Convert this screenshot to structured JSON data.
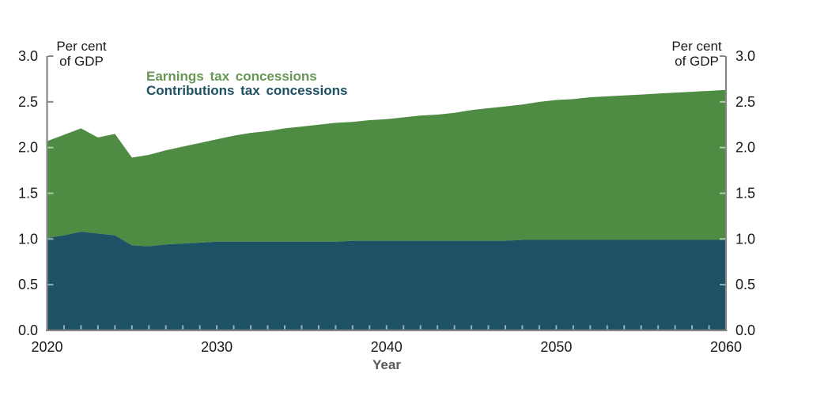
{
  "chart_data": {
    "type": "area",
    "stacked": true,
    "xlabel": "Year",
    "y_axis_unit_label": {
      "line1": "Per cent",
      "line2": "of GDP"
    },
    "xlim": [
      2020,
      2060
    ],
    "ylim": [
      0.0,
      3.0
    ],
    "xticks": [
      "2020",
      "2030",
      "2040",
      "2050",
      "2060"
    ],
    "yticks": [
      "0.0",
      "0.5",
      "1.0",
      "1.5",
      "2.0",
      "2.5",
      "3.0"
    ],
    "grid": false,
    "axis_color": "#878787",
    "tick_color_over_area": "rgba(255,255,255,0.55)",
    "tick_label_color": "#1a1a1a",
    "x": [
      2020,
      2021,
      2022,
      2023,
      2024,
      2025,
      2026,
      2027,
      2028,
      2029,
      2030,
      2031,
      2032,
      2033,
      2034,
      2035,
      2036,
      2037,
      2038,
      2039,
      2040,
      2041,
      2042,
      2043,
      2044,
      2045,
      2046,
      2047,
      2048,
      2049,
      2050,
      2051,
      2052,
      2053,
      2054,
      2055,
      2056,
      2057,
      2058,
      2059,
      2060
    ],
    "series": [
      {
        "name": "Contributions tax concessions",
        "color": "#1d5266",
        "values": [
          1.01,
          1.04,
          1.08,
          1.06,
          1.04,
          0.93,
          0.92,
          0.94,
          0.95,
          0.96,
          0.97,
          0.97,
          0.97,
          0.97,
          0.97,
          0.97,
          0.97,
          0.97,
          0.98,
          0.98,
          0.98,
          0.98,
          0.98,
          0.98,
          0.98,
          0.98,
          0.98,
          0.98,
          0.99,
          0.99,
          0.99,
          0.99,
          0.99,
          0.99,
          0.99,
          0.99,
          0.99,
          0.99,
          0.99,
          0.99,
          0.99
        ]
      },
      {
        "name": "Earnings tax concessions",
        "color": "#4e8c44",
        "values": [
          1.06,
          1.1,
          1.13,
          1.05,
          1.11,
          0.96,
          1.0,
          1.03,
          1.06,
          1.09,
          1.12,
          1.16,
          1.19,
          1.21,
          1.24,
          1.26,
          1.28,
          1.3,
          1.3,
          1.32,
          1.33,
          1.35,
          1.37,
          1.38,
          1.4,
          1.43,
          1.45,
          1.47,
          1.48,
          1.51,
          1.53,
          1.54,
          1.56,
          1.57,
          1.58,
          1.59,
          1.6,
          1.61,
          1.62,
          1.63,
          1.64
        ]
      }
    ],
    "legend": {
      "position": "top-left-inside",
      "items": [
        {
          "label": "Earnings tax concessions",
          "text_color": "#689755"
        },
        {
          "label": "Contributions tax concessions",
          "text_color": "#1e5064"
        }
      ]
    }
  }
}
